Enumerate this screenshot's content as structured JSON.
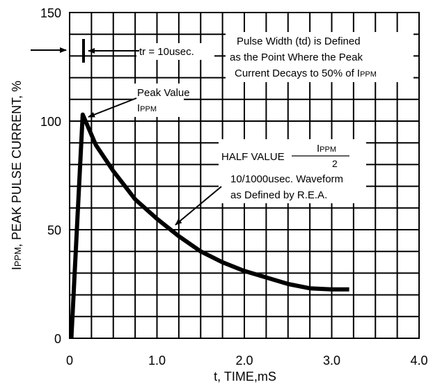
{
  "chart_data": {
    "type": "line",
    "xlabel": "t, TIME,mS",
    "ylabel": {
      "main": "I",
      "sub": "PPM",
      "rest": ", PEAK PULSE CURRENT, %"
    },
    "xlim": [
      0,
      4.0
    ],
    "ylim": [
      0,
      150
    ],
    "x_ticks": [
      {
        "value": 0,
        "label": "0"
      },
      {
        "value": 1.0,
        "label": "1.0"
      },
      {
        "value": 2.0,
        "label": "2.0"
      },
      {
        "value": 3.0,
        "label": "3.0"
      },
      {
        "value": 4.0,
        "label": "4.0"
      }
    ],
    "y_ticks": [
      {
        "value": 0,
        "label": "0"
      },
      {
        "value": 50,
        "label": "50"
      },
      {
        "value": 100,
        "label": "100"
      },
      {
        "value": 150,
        "label": "150"
      }
    ],
    "grid": true,
    "grid_x_step": 0.25,
    "grid_y_step": 10,
    "series": [
      {
        "x": [
          0.02,
          0.15,
          0.3,
          0.5,
          0.75,
          1.0,
          1.25,
          1.5,
          1.75,
          2.0,
          2.25,
          2.5,
          2.75,
          3.0,
          3.2
        ],
        "y": [
          0,
          103,
          89,
          77,
          64,
          55,
          47,
          40,
          35,
          31,
          28,
          25,
          23,
          22.5,
          22.5
        ],
        "color": "#000000"
      }
    ],
    "annotations": {
      "tr": "tr = 10usec.",
      "pulse_width": [
        "Pulse Width (td) is Defined",
        "as the Point Where the Peak",
        "Current Decays to 50% of I"
      ],
      "pulse_width_sub": "PPM",
      "peak_value": "Peak Value",
      "peak_ippm_main": "I",
      "peak_ippm_sub": "PPM",
      "half_value": "HALF VALUE",
      "half_num_main": "I",
      "half_num_sub": "PPM",
      "half_den": "2",
      "waveform": [
        "10/1000usec. Waveform",
        "as Defined by R.E.A."
      ]
    }
  }
}
